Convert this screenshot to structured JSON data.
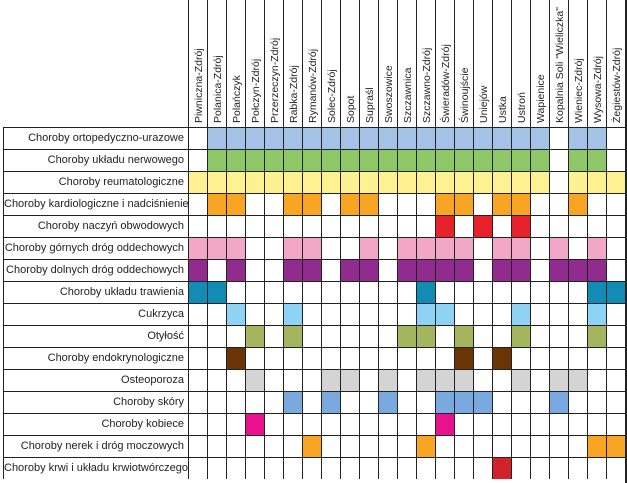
{
  "columns": [
    "Piwniczna-Zdrój",
    "Polanica-Zdrój",
    "Polańczyk",
    "Połczyn-Zdrój",
    "Przerzeczyn-Zdrój",
    "Rabka-Zdrój",
    "Rymanów-Zdrój",
    "Solec-Zdrój",
    "Sopot",
    "Supraśl",
    "Swoszowice",
    "Szczawnica",
    "Szczawno-Zdrój",
    "Świeradów-Zdrój",
    "Świnoujście",
    "Uniejów",
    "Ustka",
    "Ustroń",
    "Wapienice",
    "Kopalnia Soli \"Wieliczka\"",
    "Wieniec-Zdrój",
    "Wysowa-Zdrój",
    "Żegiestów-Zdrój"
  ],
  "rows": [
    {
      "label": "Choroby ortopedyczno-urazowe",
      "color": "#a4c2e6",
      "cols": [
        1,
        2,
        3,
        4,
        5,
        6,
        7,
        8,
        9,
        10,
        11,
        12,
        13,
        14,
        15,
        16,
        17,
        18,
        20,
        21
      ]
    },
    {
      "label": "Choroby układu nerwowego",
      "color": "#8dc768",
      "cols": [
        1,
        2,
        3,
        4,
        5,
        6,
        7,
        8,
        9,
        10,
        11,
        12,
        13,
        14,
        15,
        16,
        17,
        18,
        20,
        21
      ]
    },
    {
      "label": "Choroby reumatologiczne",
      "color": "#fdf192",
      "cols": [
        0,
        1,
        2,
        3,
        4,
        5,
        6,
        7,
        8,
        9,
        10,
        11,
        12,
        13,
        14,
        15,
        16,
        17,
        18,
        20,
        21,
        22
      ]
    },
    {
      "label": "Choroby kardiologiczne i nadciśnienie",
      "color": "#f9a524",
      "cols": [
        1,
        2,
        5,
        6,
        8,
        9,
        13,
        14,
        16,
        17,
        20
      ]
    },
    {
      "label": "Choroby naczyń obwodowych",
      "color": "#e8222a",
      "cols": [
        13,
        15,
        17
      ]
    },
    {
      "label": "Choroby górnych dróg oddechowych",
      "color": "#f2a6c8",
      "cols": [
        0,
        1,
        2,
        5,
        6,
        9,
        11,
        12,
        13,
        14,
        16,
        17,
        19,
        21
      ]
    },
    {
      "label": "Choroby dolnych dróg oddechowych",
      "color": "#902c8e",
      "cols": [
        0,
        2,
        5,
        6,
        8,
        9,
        11,
        12,
        13,
        14,
        16,
        17,
        19,
        20,
        21
      ]
    },
    {
      "label": "Choroby układu trawienia",
      "color": "#118db5",
      "cols": [
        0,
        1,
        12,
        21,
        22
      ]
    },
    {
      "label": "Cukrzyca",
      "color": "#8fd3f4",
      "cols": [
        2,
        5,
        12,
        13,
        17,
        21
      ]
    },
    {
      "label": "Otyłość",
      "color": "#a5b55f",
      "cols": [
        3,
        5,
        11,
        12,
        14,
        17,
        21
      ]
    },
    {
      "label": "Choroby endokrynologiczne",
      "color": "#6a3506",
      "cols": [
        2,
        14,
        16
      ]
    },
    {
      "label": "Osteoporoza",
      "color": "#d4d4d4",
      "cols": [
        3,
        7,
        8,
        10,
        12,
        13,
        14,
        17,
        19,
        20
      ]
    },
    {
      "label": "Choroby skóry",
      "color": "#79a9df",
      "cols": [
        5,
        7,
        10,
        13,
        14,
        15,
        19
      ]
    },
    {
      "label": "Choroby kobiece",
      "color": "#e8118e",
      "cols": [
        3,
        13
      ]
    },
    {
      "label": "Choroby nerek i dróg moczowych",
      "color": "#f9a524",
      "cols": [
        6,
        12,
        21,
        22
      ]
    },
    {
      "label": "Choroby krwi i układu krwiotwórczego",
      "color": "#d2232a",
      "cols": [
        16
      ]
    }
  ]
}
